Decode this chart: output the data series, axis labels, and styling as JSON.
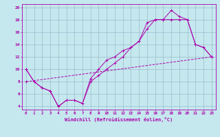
{
  "xlabel": "Windchill (Refroidissement éolien,°C)",
  "bg_color": "#c5e8ee",
  "line_color": "#aa00aa",
  "grid_color": "#99bbcc",
  "xlim": [
    -0.5,
    23.5
  ],
  "ylim": [
    3.5,
    20.5
  ],
  "xticks": [
    0,
    1,
    2,
    3,
    4,
    5,
    6,
    7,
    8,
    9,
    10,
    11,
    12,
    13,
    14,
    15,
    16,
    17,
    18,
    19,
    20,
    21,
    22,
    23
  ],
  "yticks": [
    4,
    6,
    8,
    10,
    12,
    14,
    16,
    18,
    20
  ],
  "line1_x": [
    0,
    1,
    2,
    3,
    4,
    5,
    6,
    7,
    8,
    9,
    10,
    11,
    12,
    13,
    14,
    15,
    16,
    17,
    18,
    19,
    20,
    21,
    22,
    23
  ],
  "line1_y": [
    10,
    8,
    7,
    6.5,
    4,
    5,
    5,
    4.5,
    8,
    9,
    10,
    11,
    12,
    13.5,
    14.5,
    17.5,
    18,
    18,
    18,
    18,
    18,
    14,
    13.5,
    12
  ],
  "line2_x": [
    0,
    1,
    2,
    3,
    4,
    5,
    6,
    7,
    8,
    9,
    10,
    11,
    12,
    13,
    14,
    15,
    16,
    17,
    18,
    19,
    20,
    21,
    22,
    23
  ],
  "line2_y": [
    10,
    8,
    7,
    6.5,
    4,
    5,
    5,
    4.5,
    8.5,
    10,
    11.5,
    12,
    13,
    13.5,
    14.5,
    16.5,
    18,
    18,
    19.5,
    18.5,
    18,
    14,
    13.5,
    12
  ],
  "line3_x": [
    0,
    23
  ],
  "line3_y": [
    8.0,
    12.0
  ]
}
